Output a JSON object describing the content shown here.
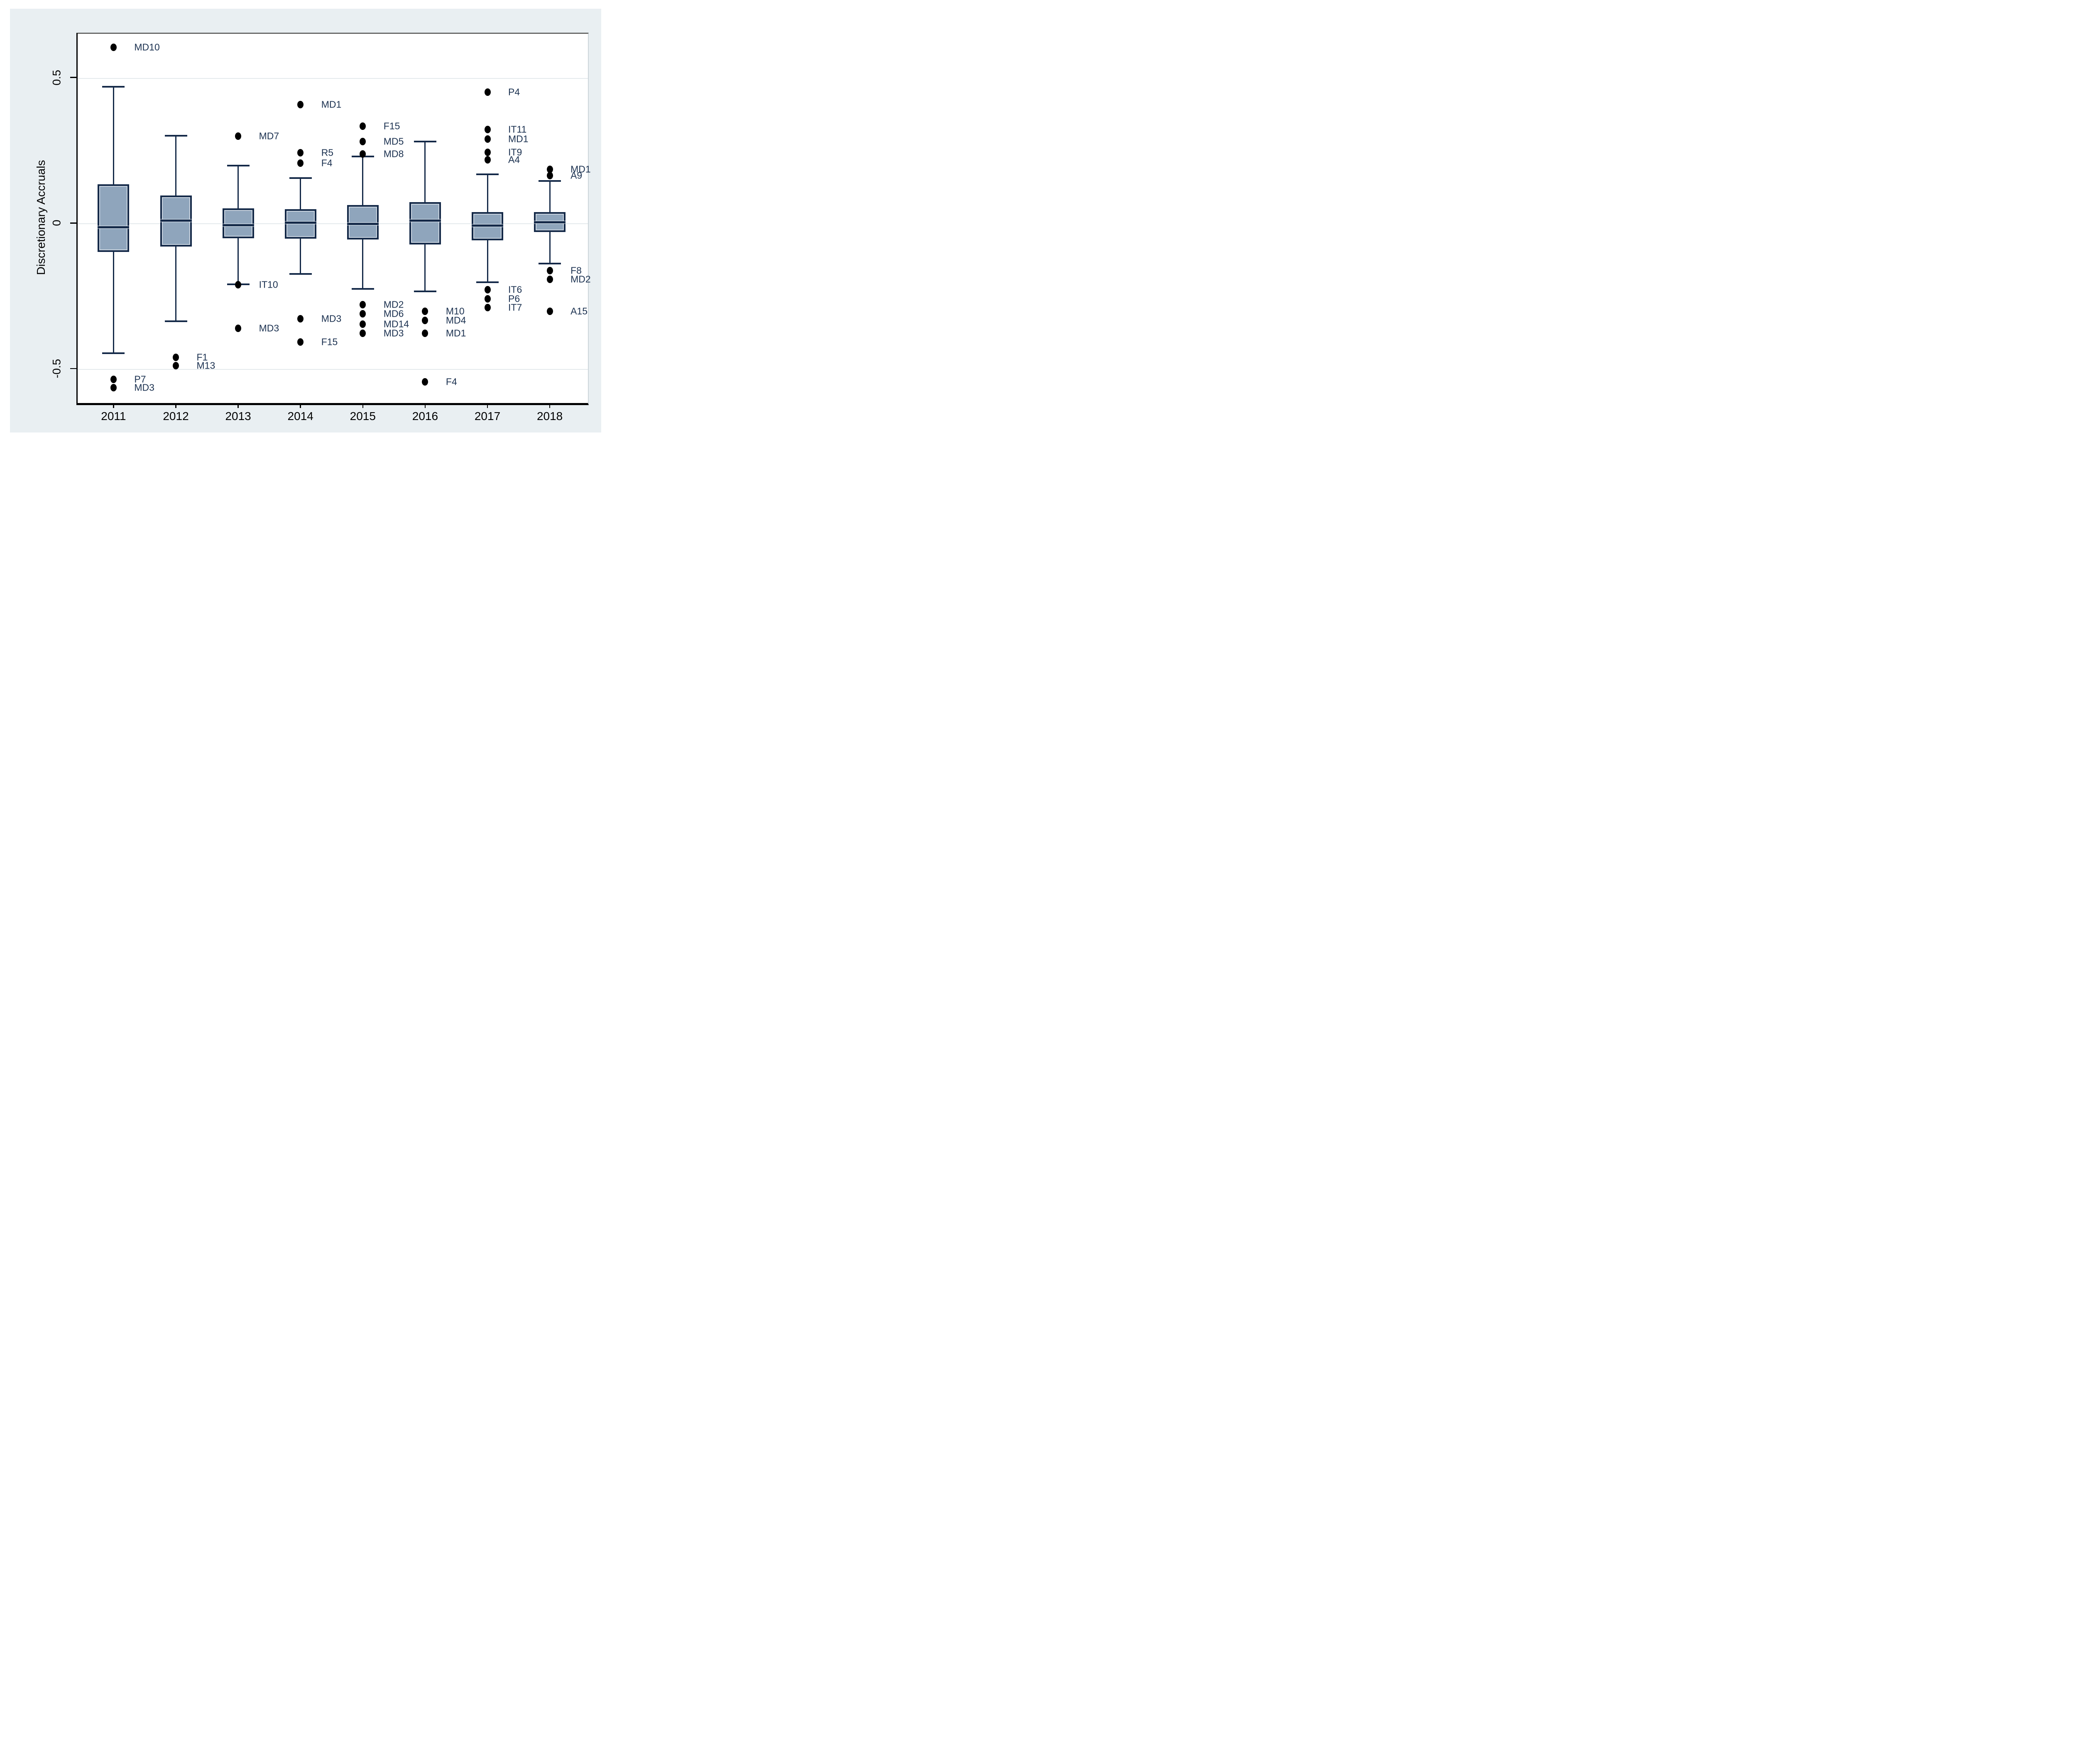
{
  "figure": {
    "ylabel": "Discretionary Accruals",
    "xlabel": ""
  },
  "chart_data": {
    "type": "box",
    "title": "",
    "ylabel": "Discretionary Accruals",
    "xlabel": "",
    "ylim": [
      -0.6154,
      0.6536
    ],
    "grid": "horizontal gridlines at y ticks, legend none",
    "y_ticks": [
      {
        "value": 0.5,
        "label": "0.5"
      },
      {
        "value": 0,
        "label": "0"
      },
      {
        "value": -0.5,
        "label": "-0.5"
      }
    ],
    "categories": [
      "2011",
      "2012",
      "2013",
      "2014",
      "2015",
      "2016",
      "2017",
      "2018"
    ],
    "series": [
      {
        "category": "2011",
        "whisker_low": -0.447,
        "q1": -0.099,
        "median": -0.014,
        "q3": 0.133,
        "whisker_high": 0.468,
        "outliers": [
          {
            "label": "MD10",
            "value": 0.604
          },
          {
            "label": "P7",
            "value": -0.537
          },
          {
            "label": "MD3",
            "value": -0.566
          }
        ]
      },
      {
        "category": "2012",
        "whisker_low": -0.338,
        "q1": -0.08,
        "median": 0.009,
        "q3": 0.094,
        "whisker_high": 0.3,
        "outliers": [
          {
            "label": "F1",
            "value": -0.462
          },
          {
            "label": "M13",
            "value": -0.49
          }
        ]
      },
      {
        "category": "2013",
        "whisker_low": -0.21,
        "q1": -0.052,
        "median": -0.007,
        "q3": 0.05,
        "whisker_high": 0.197,
        "outliers": [
          {
            "label": "MD7",
            "value": 0.298
          },
          {
            "label": "IT10",
            "value": -0.212
          },
          {
            "label": "MD3",
            "value": -0.361
          }
        ]
      },
      {
        "category": "2014",
        "whisker_low": -0.175,
        "q1": -0.054,
        "median": 0.001,
        "q3": 0.047,
        "whisker_high": 0.154,
        "outliers": [
          {
            "label": "MD1",
            "value": 0.407
          },
          {
            "label": "R5",
            "value": 0.242
          },
          {
            "label": "F4",
            "value": 0.206
          },
          {
            "label": "MD3",
            "value": -0.329
          },
          {
            "label": "F15",
            "value": -0.408
          }
        ]
      },
      {
        "category": "2015",
        "whisker_low": -0.226,
        "q1": -0.057,
        "median": -0.003,
        "q3": 0.062,
        "whisker_high": 0.228,
        "outliers": [
          {
            "label": "F15",
            "value": 0.333
          },
          {
            "label": "MD5",
            "value": 0.28
          },
          {
            "label": "MD8",
            "value": 0.237
          },
          {
            "label": "MD2",
            "value": -0.28
          },
          {
            "label": "MD6",
            "value": -0.311
          },
          {
            "label": "MD14",
            "value": -0.347
          },
          {
            "label": "MD3",
            "value": -0.379
          }
        ]
      },
      {
        "category": "2016",
        "whisker_low": -0.235,
        "q1": -0.073,
        "median": 0.009,
        "q3": 0.072,
        "whisker_high": 0.28,
        "outliers": [
          {
            "label": "M10",
            "value": -0.303
          },
          {
            "label": "MD4",
            "value": -0.335
          },
          {
            "label": "MD1",
            "value": -0.379
          },
          {
            "label": "F4",
            "value": -0.546
          }
        ]
      },
      {
        "category": "2017",
        "whisker_low": -0.203,
        "q1": -0.059,
        "median": -0.009,
        "q3": 0.038,
        "whisker_high": 0.168,
        "outliers": [
          {
            "label": "P4",
            "value": 0.449
          },
          {
            "label": "IT11",
            "value": 0.321
          },
          {
            "label": "MD1",
            "value": 0.289
          },
          {
            "label": "IT9",
            "value": 0.243
          },
          {
            "label": "A4",
            "value": 0.217
          },
          {
            "label": "IT6",
            "value": -0.229
          },
          {
            "label": "P6",
            "value": -0.26
          },
          {
            "label": "IT7",
            "value": -0.29
          }
        ]
      },
      {
        "category": "2018",
        "whisker_low": -0.139,
        "q1": -0.031,
        "median": 0.002,
        "q3": 0.038,
        "whisker_high": 0.144,
        "outliers": [
          {
            "label": "MD1",
            "value": 0.185
          },
          {
            "label": "A9",
            "value": 0.163
          },
          {
            "label": "F8",
            "value": -0.164
          },
          {
            "label": "MD2",
            "value": -0.193
          },
          {
            "label": "A15",
            "value": -0.303
          }
        ]
      }
    ],
    "colors": {
      "panel_background": "#e9eff2",
      "plot_background": "#ffffff",
      "box_fill": "#8fa5bc",
      "box_border": "#142948",
      "median_line": "#142948",
      "outlier_dot": "#000000",
      "outlier_label": "#1b3150",
      "gridline": "#e4e9ec",
      "axis_line": "#000000",
      "axis_text": "#000000"
    }
  }
}
